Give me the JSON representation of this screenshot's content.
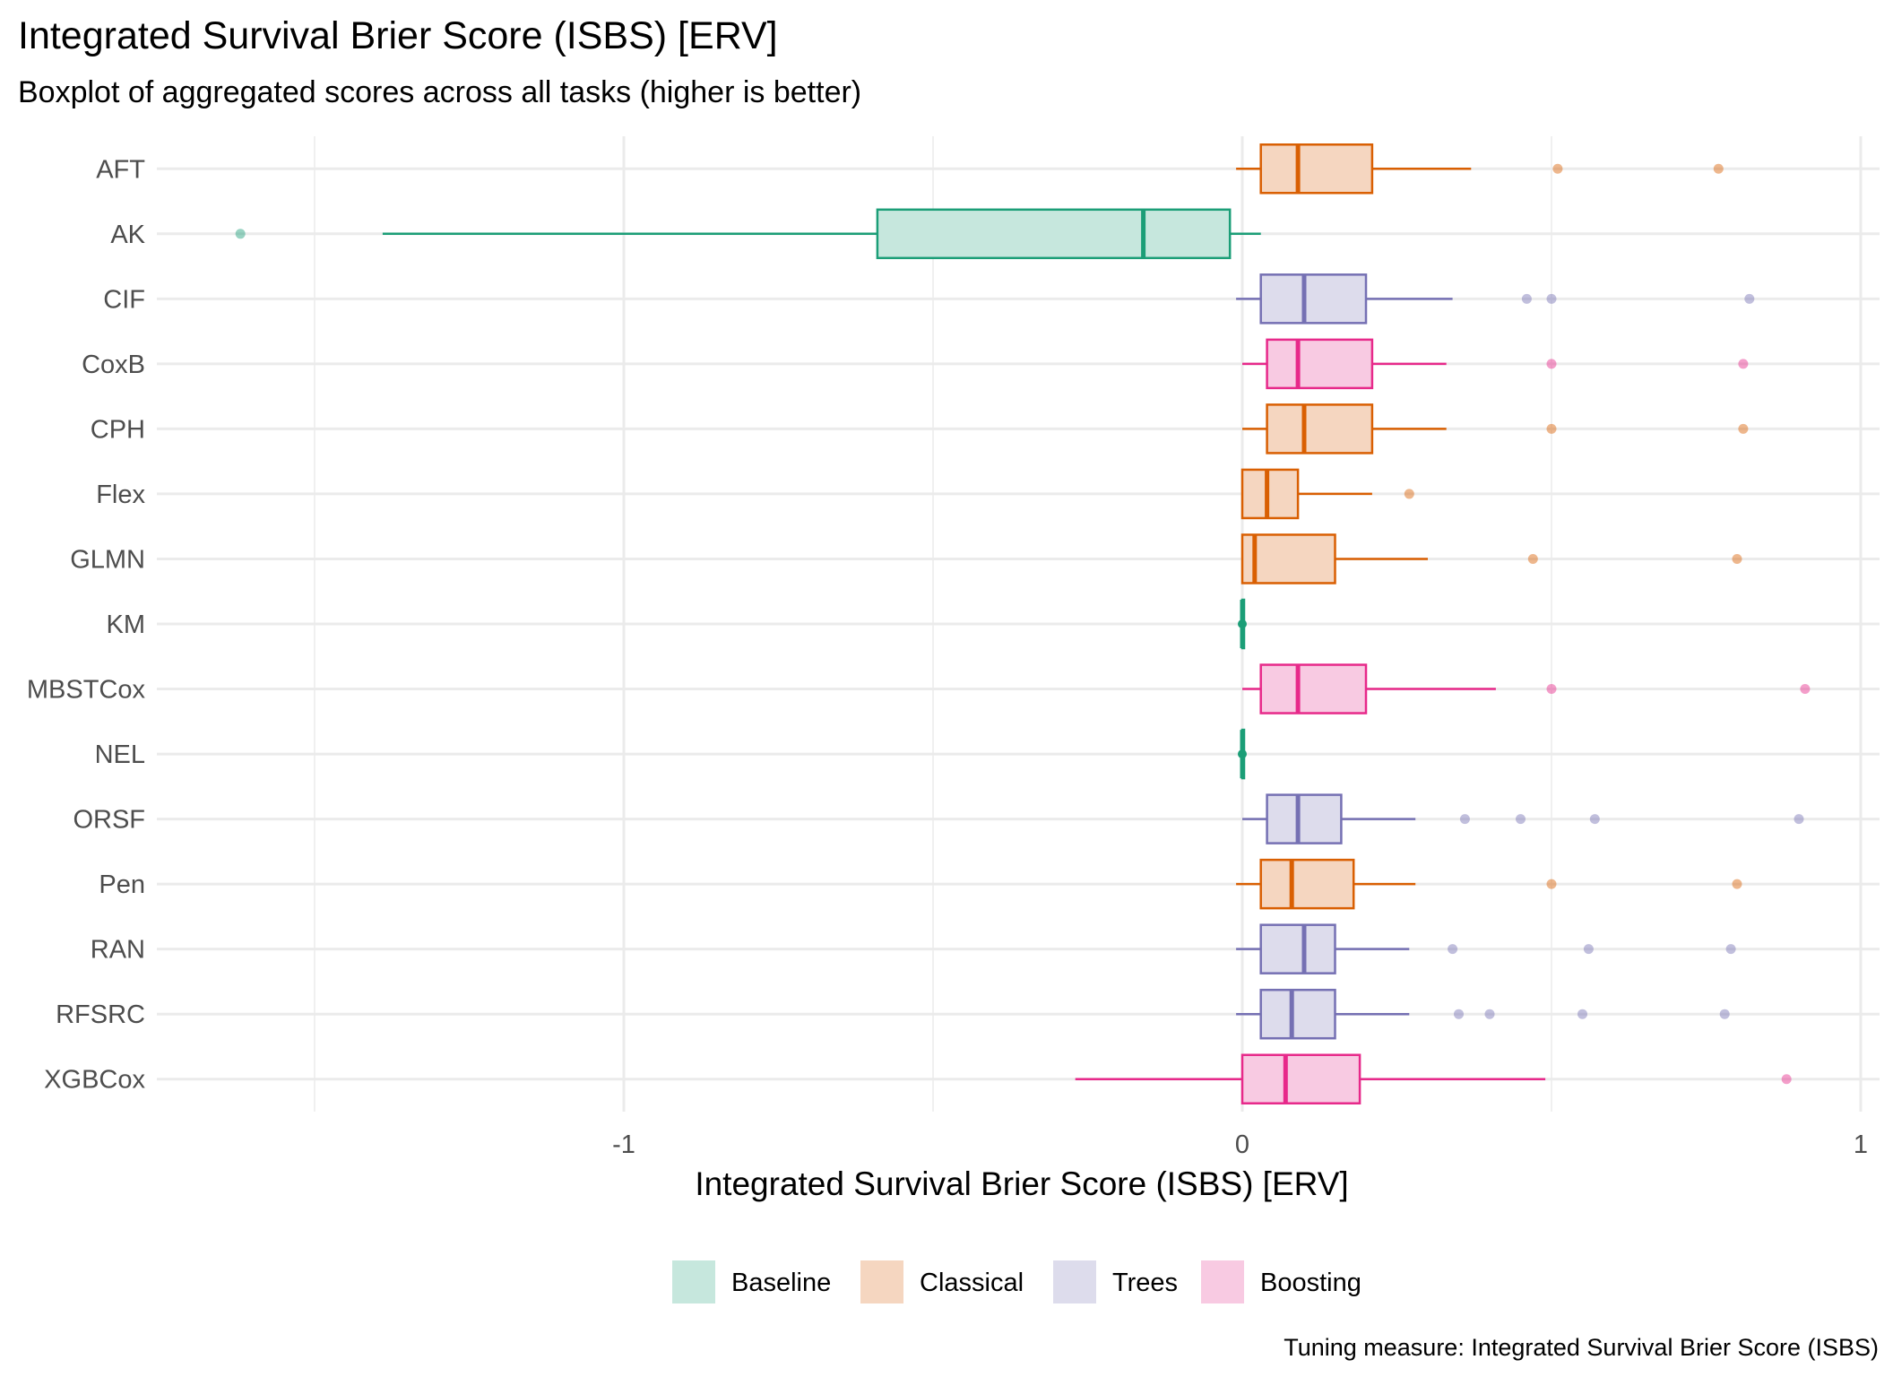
{
  "chart_data": {
    "type": "boxplot",
    "title": "Integrated Survival Brier Score (ISBS) [ERV]",
    "subtitle": "Boxplot of aggregated scores across all tasks (higher is better)",
    "xlabel": "Integrated Survival Brier Score (ISBS) [ERV]",
    "ylabel": "",
    "caption": "Tuning measure: Integrated Survival Brier Score (ISBS)",
    "xlim": [
      -1.75,
      1.03
    ],
    "x_ticks": [
      -1,
      0,
      1
    ],
    "x_tick_labels": [
      "-1",
      "0",
      "1"
    ],
    "grid": true,
    "legend_position": "bottom",
    "groups": [
      {
        "name": "Baseline",
        "color": "#1B9E77",
        "fill": "#C6E7DD"
      },
      {
        "name": "Classical",
        "color": "#D95F02",
        "fill": "#F5D6C0"
      },
      {
        "name": "Trees",
        "color": "#7570B3",
        "fill": "#DDDCEC"
      },
      {
        "name": "Boosting",
        "color": "#E7298A",
        "fill": "#F8CAE2"
      }
    ],
    "categories": [
      "AFT",
      "AK",
      "CIF",
      "CoxB",
      "CPH",
      "Flex",
      "GLMN",
      "KM",
      "MBSTCox",
      "NEL",
      "ORSF",
      "Pen",
      "RAN",
      "RFSRC",
      "XGBCox"
    ],
    "series": [
      {
        "learner": "AFT",
        "group": "Classical",
        "whisker_low": -0.01,
        "q1": 0.03,
        "median": 0.09,
        "q3": 0.21,
        "whisker_high": 0.37,
        "outliers": [
          0.51,
          0.77
        ]
      },
      {
        "learner": "AK",
        "group": "Baseline",
        "whisker_low": -1.39,
        "q1": -0.59,
        "median": -0.16,
        "q3": -0.02,
        "whisker_high": 0.03,
        "outliers": [
          -1.62
        ]
      },
      {
        "learner": "CIF",
        "group": "Trees",
        "whisker_low": -0.01,
        "q1": 0.03,
        "median": 0.1,
        "q3": 0.2,
        "whisker_high": 0.34,
        "outliers": [
          0.46,
          0.5,
          0.82
        ]
      },
      {
        "learner": "CoxB",
        "group": "Boosting",
        "whisker_low": 0.0,
        "q1": 0.04,
        "median": 0.09,
        "q3": 0.21,
        "whisker_high": 0.33,
        "outliers": [
          0.5,
          0.81
        ]
      },
      {
        "learner": "CPH",
        "group": "Classical",
        "whisker_low": 0.0,
        "q1": 0.04,
        "median": 0.1,
        "q3": 0.21,
        "whisker_high": 0.33,
        "outliers": [
          0.5,
          0.81
        ]
      },
      {
        "learner": "Flex",
        "group": "Classical",
        "whisker_low": 0.0,
        "q1": 0.0,
        "median": 0.04,
        "q3": 0.09,
        "whisker_high": 0.21,
        "outliers": [
          0.27
        ]
      },
      {
        "learner": "GLMN",
        "group": "Classical",
        "whisker_low": 0.0,
        "q1": 0.0,
        "median": 0.02,
        "q3": 0.15,
        "whisker_high": 0.3,
        "outliers": [
          0.47,
          0.8
        ]
      },
      {
        "learner": "KM",
        "group": "Baseline",
        "whisker_low": 0.0,
        "q1": 0.0,
        "median": 0.0,
        "q3": 0.0,
        "whisker_high": 0.0,
        "outliers": []
      },
      {
        "learner": "MBSTCox",
        "group": "Boosting",
        "whisker_low": 0.0,
        "q1": 0.03,
        "median": 0.09,
        "q3": 0.2,
        "whisker_high": 0.41,
        "outliers": [
          0.5,
          0.91
        ]
      },
      {
        "learner": "NEL",
        "group": "Baseline",
        "whisker_low": 0.0,
        "q1": 0.0,
        "median": 0.0,
        "q3": 0.0,
        "whisker_high": 0.0,
        "outliers": []
      },
      {
        "learner": "ORSF",
        "group": "Trees",
        "whisker_low": 0.0,
        "q1": 0.04,
        "median": 0.09,
        "q3": 0.16,
        "whisker_high": 0.28,
        "outliers": [
          0.36,
          0.45,
          0.57,
          0.9
        ]
      },
      {
        "learner": "Pen",
        "group": "Classical",
        "whisker_low": -0.01,
        "q1": 0.03,
        "median": 0.08,
        "q3": 0.18,
        "whisker_high": 0.28,
        "outliers": [
          0.5,
          0.8
        ]
      },
      {
        "learner": "RAN",
        "group": "Trees",
        "whisker_low": -0.01,
        "q1": 0.03,
        "median": 0.1,
        "q3": 0.15,
        "whisker_high": 0.27,
        "outliers": [
          0.34,
          0.56,
          0.79
        ]
      },
      {
        "learner": "RFSRC",
        "group": "Trees",
        "whisker_low": -0.01,
        "q1": 0.03,
        "median": 0.08,
        "q3": 0.15,
        "whisker_high": 0.27,
        "outliers": [
          0.35,
          0.4,
          0.55,
          0.78
        ]
      },
      {
        "learner": "XGBCox",
        "group": "Boosting",
        "whisker_low": -0.27,
        "q1": 0.0,
        "median": 0.07,
        "q3": 0.19,
        "whisker_high": 0.49,
        "outliers": [
          0.88
        ]
      }
    ]
  }
}
